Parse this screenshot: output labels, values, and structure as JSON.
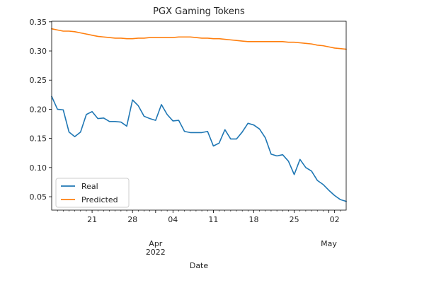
{
  "chart_data": {
    "type": "line",
    "title": "PGX Gaming Tokens",
    "xlabel": "Date",
    "ylabel": "",
    "ylim": [
      0.027,
      0.351
    ],
    "xlim": [
      "2022-03-14",
      "2022-05-04"
    ],
    "grid": false,
    "legend_position": "lower-left",
    "y_ticks": [
      "0.05",
      "0.10",
      "0.15",
      "0.20",
      "0.25",
      "0.30",
      "0.35"
    ],
    "x_ticks": [
      {
        "date": "2022-03-21",
        "label": "21"
      },
      {
        "date": "2022-03-28",
        "label": "28"
      },
      {
        "date": "2022-04-04",
        "label": "04"
      },
      {
        "date": "2022-04-11",
        "label": "11"
      },
      {
        "date": "2022-04-18",
        "label": "18"
      },
      {
        "date": "2022-04-25",
        "label": "25"
      },
      {
        "date": "2022-05-02",
        "label": "02"
      }
    ],
    "x_major_labels": [
      {
        "date": "2022-04-01",
        "label": "Apr",
        "sublabel": "2022"
      },
      {
        "date": "2022-05-01",
        "label": "May",
        "sublabel": ""
      }
    ],
    "x": [
      "2022-03-14",
      "2022-03-15",
      "2022-03-16",
      "2022-03-17",
      "2022-03-18",
      "2022-03-19",
      "2022-03-20",
      "2022-03-21",
      "2022-03-22",
      "2022-03-23",
      "2022-03-24",
      "2022-03-25",
      "2022-03-26",
      "2022-03-27",
      "2022-03-28",
      "2022-03-29",
      "2022-03-30",
      "2022-03-31",
      "2022-04-01",
      "2022-04-02",
      "2022-04-03",
      "2022-04-04",
      "2022-04-05",
      "2022-04-06",
      "2022-04-07",
      "2022-04-08",
      "2022-04-09",
      "2022-04-10",
      "2022-04-11",
      "2022-04-12",
      "2022-04-13",
      "2022-04-14",
      "2022-04-15",
      "2022-04-16",
      "2022-04-17",
      "2022-04-18",
      "2022-04-19",
      "2022-04-20",
      "2022-04-21",
      "2022-04-22",
      "2022-04-23",
      "2022-04-24",
      "2022-04-25",
      "2022-04-26",
      "2022-04-27",
      "2022-04-28",
      "2022-04-29",
      "2022-04-30",
      "2022-05-01",
      "2022-05-02",
      "2022-05-03",
      "2022-05-04"
    ],
    "series": [
      {
        "name": "Real",
        "color": "#1f77b4",
        "values": [
          0.222,
          0.2,
          0.199,
          0.161,
          0.153,
          0.161,
          0.191,
          0.196,
          0.184,
          0.185,
          0.179,
          0.179,
          0.178,
          0.171,
          0.216,
          0.206,
          0.188,
          0.184,
          0.181,
          0.208,
          0.191,
          0.18,
          0.181,
          0.162,
          0.16,
          0.16,
          0.16,
          0.162,
          0.137,
          0.142,
          0.165,
          0.149,
          0.149,
          0.161,
          0.176,
          0.173,
          0.166,
          0.151,
          0.123,
          0.12,
          0.122,
          0.111,
          0.088,
          0.114,
          0.1,
          0.094,
          0.078,
          0.071,
          0.061,
          0.052,
          0.045,
          0.042
        ]
      },
      {
        "name": "Predicted",
        "color": "#ff7f0e",
        "values": [
          0.338,
          0.336,
          0.334,
          0.334,
          0.333,
          0.331,
          0.329,
          0.327,
          0.325,
          0.324,
          0.323,
          0.322,
          0.322,
          0.321,
          0.321,
          0.322,
          0.322,
          0.323,
          0.323,
          0.323,
          0.323,
          0.323,
          0.324,
          0.324,
          0.324,
          0.323,
          0.322,
          0.322,
          0.321,
          0.321,
          0.32,
          0.319,
          0.318,
          0.317,
          0.316,
          0.316,
          0.316,
          0.316,
          0.316,
          0.316,
          0.316,
          0.315,
          0.315,
          0.314,
          0.313,
          0.312,
          0.31,
          0.309,
          0.307,
          0.305,
          0.304,
          0.303
        ]
      }
    ]
  }
}
